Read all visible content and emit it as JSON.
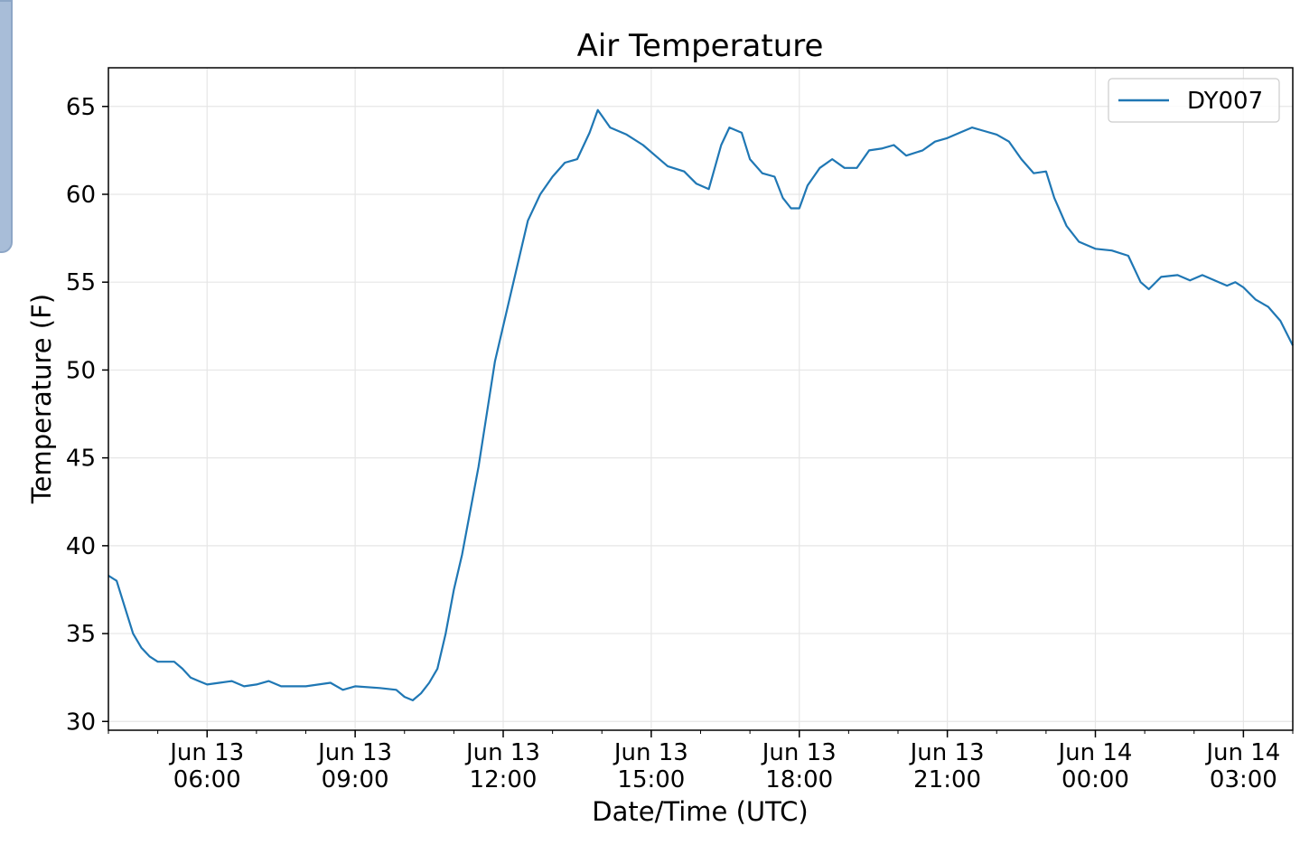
{
  "chart_data": {
    "type": "line",
    "title": "Air Temperature",
    "xlabel": "Date/Time (UTC)",
    "ylabel": "Temperature (F)",
    "x_axis": "datetime",
    "xlim": [
      "2020-06-13T04:00",
      "2020-06-14T04:00"
    ],
    "ylim": [
      29.5,
      67.2
    ],
    "y_ticks": [
      30,
      35,
      40,
      45,
      50,
      55,
      60,
      65
    ],
    "x_ticks": [
      {
        "t": "2020-06-13T06:00",
        "line1": "Jun 13",
        "line2": "06:00"
      },
      {
        "t": "2020-06-13T09:00",
        "line1": "Jun 13",
        "line2": "09:00"
      },
      {
        "t": "2020-06-13T12:00",
        "line1": "Jun 13",
        "line2": "12:00"
      },
      {
        "t": "2020-06-13T15:00",
        "line1": "Jun 13",
        "line2": "15:00"
      },
      {
        "t": "2020-06-13T18:00",
        "line1": "Jun 13",
        "line2": "18:00"
      },
      {
        "t": "2020-06-13T21:00",
        "line1": "Jun 13",
        "line2": "21:00"
      },
      {
        "t": "2020-06-14T00:00",
        "line1": "Jun 14",
        "line2": "00:00"
      },
      {
        "t": "2020-06-14T03:00",
        "line1": "Jun 14",
        "line2": "03:00"
      }
    ],
    "grid": true,
    "legend": "top-right",
    "series": [
      {
        "name": "DY007",
        "color": "#1f77b4",
        "points": [
          [
            "2020-06-13T04:00",
            38.3
          ],
          [
            "2020-06-13T04:10",
            38.0
          ],
          [
            "2020-06-13T04:20",
            36.5
          ],
          [
            "2020-06-13T04:30",
            35.0
          ],
          [
            "2020-06-13T04:40",
            34.2
          ],
          [
            "2020-06-13T04:50",
            33.7
          ],
          [
            "2020-06-13T05:00",
            33.4
          ],
          [
            "2020-06-13T05:10",
            33.4
          ],
          [
            "2020-06-13T05:20",
            33.4
          ],
          [
            "2020-06-13T05:30",
            33.0
          ],
          [
            "2020-06-13T05:40",
            32.5
          ],
          [
            "2020-06-13T05:50",
            32.3
          ],
          [
            "2020-06-13T06:00",
            32.1
          ],
          [
            "2020-06-13T06:15",
            32.2
          ],
          [
            "2020-06-13T06:30",
            32.3
          ],
          [
            "2020-06-13T06:45",
            32.0
          ],
          [
            "2020-06-13T07:00",
            32.1
          ],
          [
            "2020-06-13T07:15",
            32.3
          ],
          [
            "2020-06-13T07:30",
            32.0
          ],
          [
            "2020-06-13T08:00",
            32.0
          ],
          [
            "2020-06-13T08:30",
            32.2
          ],
          [
            "2020-06-13T08:45",
            31.8
          ],
          [
            "2020-06-13T09:00",
            32.0
          ],
          [
            "2020-06-13T09:30",
            31.9
          ],
          [
            "2020-06-13T09:50",
            31.8
          ],
          [
            "2020-06-13T10:00",
            31.4
          ],
          [
            "2020-06-13T10:10",
            31.2
          ],
          [
            "2020-06-13T10:20",
            31.6
          ],
          [
            "2020-06-13T10:30",
            32.2
          ],
          [
            "2020-06-13T10:40",
            33.0
          ],
          [
            "2020-06-13T10:50",
            35.0
          ],
          [
            "2020-06-13T11:00",
            37.5
          ],
          [
            "2020-06-13T11:10",
            39.5
          ],
          [
            "2020-06-13T11:20",
            42.0
          ],
          [
            "2020-06-13T11:30",
            44.5
          ],
          [
            "2020-06-13T11:40",
            47.5
          ],
          [
            "2020-06-13T11:50",
            50.5
          ],
          [
            "2020-06-13T12:00",
            52.5
          ],
          [
            "2020-06-13T12:10",
            54.5
          ],
          [
            "2020-06-13T12:20",
            56.5
          ],
          [
            "2020-06-13T12:30",
            58.5
          ],
          [
            "2020-06-13T12:45",
            60.0
          ],
          [
            "2020-06-13T13:00",
            61.0
          ],
          [
            "2020-06-13T13:15",
            61.8
          ],
          [
            "2020-06-13T13:30",
            62.0
          ],
          [
            "2020-06-13T13:45",
            63.5
          ],
          [
            "2020-06-13T13:55",
            64.8
          ],
          [
            "2020-06-13T14:10",
            63.8
          ],
          [
            "2020-06-13T14:30",
            63.4
          ],
          [
            "2020-06-13T14:50",
            62.8
          ],
          [
            "2020-06-13T15:05",
            62.2
          ],
          [
            "2020-06-13T15:20",
            61.6
          ],
          [
            "2020-06-13T15:40",
            61.3
          ],
          [
            "2020-06-13T15:55",
            60.6
          ],
          [
            "2020-06-13T16:10",
            60.3
          ],
          [
            "2020-06-13T16:25",
            62.8
          ],
          [
            "2020-06-13T16:35",
            63.8
          ],
          [
            "2020-06-13T16:50",
            63.5
          ],
          [
            "2020-06-13T17:00",
            62.0
          ],
          [
            "2020-06-13T17:15",
            61.2
          ],
          [
            "2020-06-13T17:30",
            61.0
          ],
          [
            "2020-06-13T17:40",
            59.8
          ],
          [
            "2020-06-13T17:50",
            59.2
          ],
          [
            "2020-06-13T18:00",
            59.2
          ],
          [
            "2020-06-13T18:10",
            60.5
          ],
          [
            "2020-06-13T18:25",
            61.5
          ],
          [
            "2020-06-13T18:40",
            62.0
          ],
          [
            "2020-06-13T18:55",
            61.5
          ],
          [
            "2020-06-13T19:10",
            61.5
          ],
          [
            "2020-06-13T19:25",
            62.5
          ],
          [
            "2020-06-13T19:40",
            62.6
          ],
          [
            "2020-06-13T19:55",
            62.8
          ],
          [
            "2020-06-13T20:10",
            62.2
          ],
          [
            "2020-06-13T20:30",
            62.5
          ],
          [
            "2020-06-13T20:45",
            63.0
          ],
          [
            "2020-06-13T21:00",
            63.2
          ],
          [
            "2020-06-13T21:15",
            63.5
          ],
          [
            "2020-06-13T21:30",
            63.8
          ],
          [
            "2020-06-13T21:45",
            63.6
          ],
          [
            "2020-06-13T22:00",
            63.4
          ],
          [
            "2020-06-13T22:15",
            63.0
          ],
          [
            "2020-06-13T22:30",
            62.0
          ],
          [
            "2020-06-13T22:45",
            61.2
          ],
          [
            "2020-06-13T23:00",
            61.3
          ],
          [
            "2020-06-13T23:10",
            59.8
          ],
          [
            "2020-06-13T23:25",
            58.2
          ],
          [
            "2020-06-13T23:40",
            57.3
          ],
          [
            "2020-06-14T00:00",
            56.9
          ],
          [
            "2020-06-14T00:20",
            56.8
          ],
          [
            "2020-06-14T00:40",
            56.5
          ],
          [
            "2020-06-14T00:55",
            55.0
          ],
          [
            "2020-06-14T01:05",
            54.6
          ],
          [
            "2020-06-14T01:20",
            55.3
          ],
          [
            "2020-06-14T01:40",
            55.4
          ],
          [
            "2020-06-14T01:55",
            55.1
          ],
          [
            "2020-06-14T02:10",
            55.4
          ],
          [
            "2020-06-14T02:30",
            55.0
          ],
          [
            "2020-06-14T02:40",
            54.8
          ],
          [
            "2020-06-14T02:50",
            55.0
          ],
          [
            "2020-06-14T03:00",
            54.7
          ],
          [
            "2020-06-14T03:15",
            54.0
          ],
          [
            "2020-06-14T03:30",
            53.6
          ],
          [
            "2020-06-14T03:45",
            52.8
          ],
          [
            "2020-06-14T04:00",
            51.4
          ]
        ]
      }
    ]
  }
}
